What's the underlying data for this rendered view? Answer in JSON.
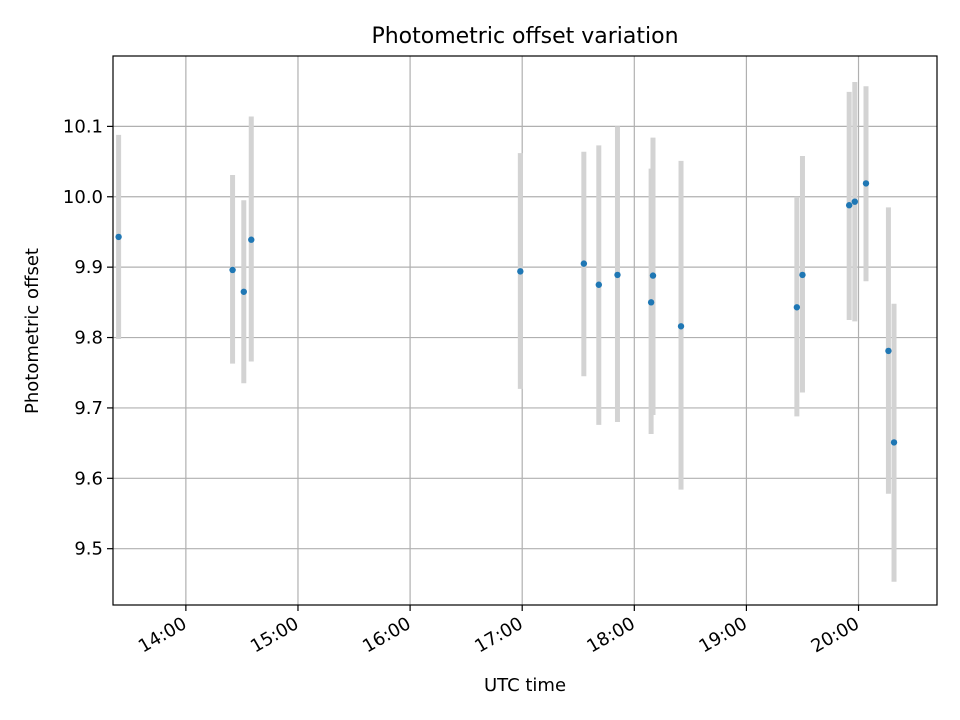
{
  "chart_data": {
    "type": "scatter",
    "title": "Photometric offset variation",
    "xlabel": "UTC time",
    "ylabel": "Photometric offset",
    "x_ticks": [
      "14:00",
      "15:00",
      "16:00",
      "17:00",
      "18:00",
      "19:00",
      "20:00"
    ],
    "y_ticks": [
      "9.5",
      "9.6",
      "9.7",
      "9.8",
      "9.9",
      "10.0",
      "10.1"
    ],
    "xlim": [
      "13:21",
      "20:42"
    ],
    "ylim": [
      9.42,
      10.2
    ],
    "grid": true,
    "legend": "none",
    "colors": {
      "points": "#1f77b4",
      "errorbars": "#d3d3d3",
      "grid": "#b0b0b0"
    },
    "series": [
      {
        "points": [
          {
            "x": "13:24",
            "y": 9.943,
            "ylow": 9.798,
            "yhigh": 10.088
          },
          {
            "x": "14:25",
            "y": 9.896,
            "ylow": 9.763,
            "yhigh": 10.031
          },
          {
            "x": "14:31",
            "y": 9.865,
            "ylow": 9.735,
            "yhigh": 9.995
          },
          {
            "x": "14:35",
            "y": 9.939,
            "ylow": 9.766,
            "yhigh": 10.114
          },
          {
            "x": "16:59",
            "y": 9.894,
            "ylow": 9.727,
            "yhigh": 10.062
          },
          {
            "x": "17:33",
            "y": 9.905,
            "ylow": 9.745,
            "yhigh": 10.064
          },
          {
            "x": "17:41",
            "y": 9.875,
            "ylow": 9.676,
            "yhigh": 10.073
          },
          {
            "x": "17:51",
            "y": 9.889,
            "ylow": 9.68,
            "yhigh": 10.1
          },
          {
            "x": "18:09",
            "y": 9.85,
            "ylow": 9.663,
            "yhigh": 10.04
          },
          {
            "x": "18:10",
            "y": 9.888,
            "ylow": 9.69,
            "yhigh": 10.084
          },
          {
            "x": "18:25",
            "y": 9.816,
            "ylow": 9.584,
            "yhigh": 10.051
          },
          {
            "x": "19:27",
            "y": 9.843,
            "ylow": 9.688,
            "yhigh": 10.0
          },
          {
            "x": "19:30",
            "y": 9.889,
            "ylow": 9.722,
            "yhigh": 10.058
          },
          {
            "x": "19:55",
            "y": 9.988,
            "ylow": 9.825,
            "yhigh": 10.149
          },
          {
            "x": "19:58",
            "y": 9.993,
            "ylow": 9.823,
            "yhigh": 10.163
          },
          {
            "x": "20:04",
            "y": 10.019,
            "ylow": 9.88,
            "yhigh": 10.157
          },
          {
            "x": "20:16",
            "y": 9.781,
            "ylow": 9.578,
            "yhigh": 9.985
          },
          {
            "x": "20:19",
            "y": 9.651,
            "ylow": 9.453,
            "yhigh": 9.848
          }
        ]
      }
    ]
  }
}
